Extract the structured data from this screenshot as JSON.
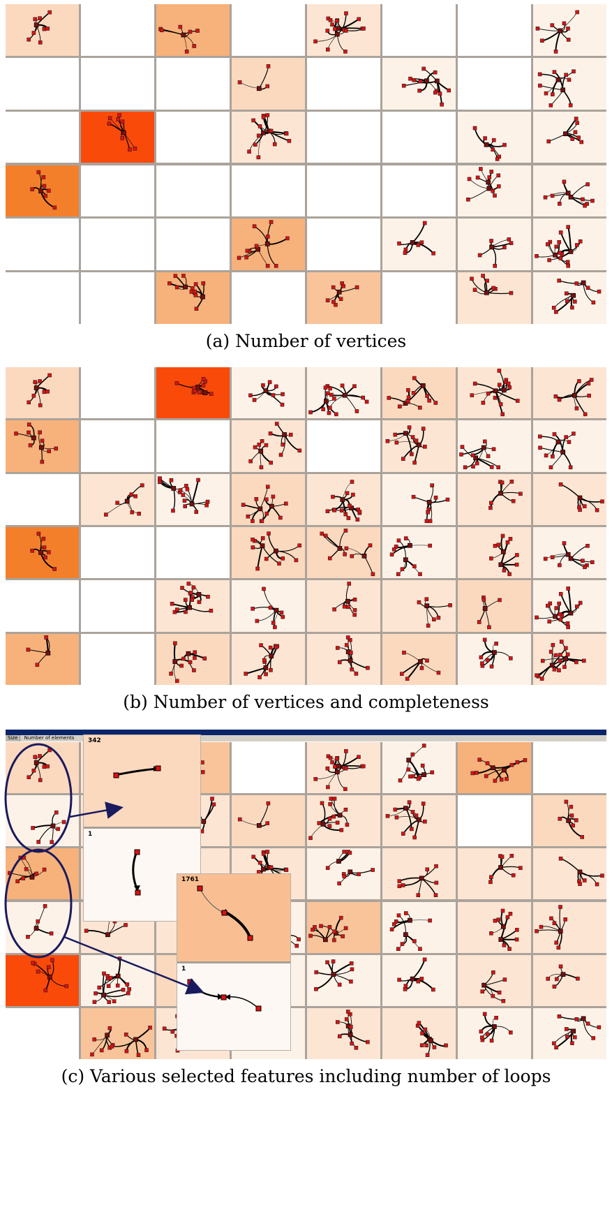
{
  "captions": {
    "a": "(a)  Number of vertices",
    "b": "(b)  Number of vertices and completeness",
    "c": "(c)  Various selected features including number of loops"
  },
  "toolbar": {
    "tab": "Size",
    "field": "Number of elements"
  },
  "zoom_labels": {
    "z1_top": "342",
    "z1_bottom": "1",
    "z2_top": "1761",
    "z2_bottom": "1"
  },
  "colors": {
    "l0": "#ffffff",
    "l1": "#fdf2e8",
    "l2": "#fce5d3",
    "l3": "#fbd9bf",
    "l4": "#f9c49a",
    "l5": "#f7b17a",
    "l6": "#f47f2b",
    "l7": "#fa4a0a"
  },
  "panel_a": [
    [
      3,
      0,
      5,
      0,
      2,
      0,
      0,
      1
    ],
    [
      0,
      0,
      0,
      3,
      0,
      1,
      0,
      1
    ],
    [
      0,
      7,
      0,
      2,
      0,
      0,
      1,
      1
    ],
    [
      6,
      0,
      0,
      0,
      0,
      0,
      1,
      1
    ],
    [
      0,
      0,
      0,
      5,
      0,
      1,
      1,
      1
    ],
    [
      0,
      0,
      5,
      0,
      4,
      0,
      2,
      1
    ]
  ],
  "panel_b": [
    [
      3,
      0,
      7,
      1,
      1,
      3,
      2,
      2
    ],
    [
      5,
      0,
      0,
      2,
      0,
      2,
      1,
      1
    ],
    [
      0,
      2,
      1,
      3,
      2,
      1,
      2,
      2
    ],
    [
      6,
      0,
      0,
      3,
      3,
      1,
      2,
      1
    ],
    [
      0,
      0,
      2,
      1,
      2,
      2,
      3,
      1
    ],
    [
      5,
      0,
      3,
      2,
      2,
      3,
      1,
      2
    ]
  ],
  "panel_c": [
    [
      3,
      2,
      4,
      0,
      2,
      1,
      5,
      0
    ],
    [
      1,
      2,
      2,
      3,
      2,
      2,
      0,
      3
    ],
    [
      5,
      2,
      2,
      2,
      1,
      2,
      2,
      2
    ],
    [
      1,
      2,
      2,
      1,
      4,
      1,
      2,
      2
    ],
    [
      7,
      1,
      3,
      1,
      1,
      1,
      2,
      2
    ],
    [
      0,
      4,
      2,
      1,
      2,
      2,
      1,
      1
    ]
  ]
}
